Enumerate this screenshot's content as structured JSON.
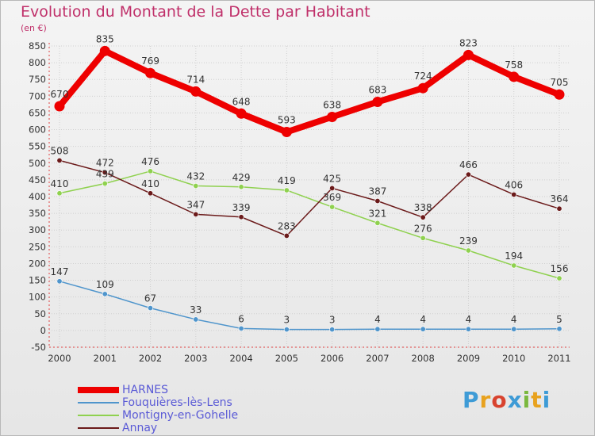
{
  "header": {
    "title": "Evolution du Montant de la Dette par Habitant",
    "unit": "(en €)"
  },
  "logo": {
    "text": "Proxiti",
    "colors": [
      "#3e9bd6",
      "#e8a21e",
      "#d8432f",
      "#3e9bd6",
      "#7ab83e",
      "#e8a21e",
      "#3e9bd6"
    ]
  },
  "chart_data": {
    "type": "line",
    "x": [
      "2000",
      "2001",
      "2002",
      "2003",
      "2004",
      "2005",
      "2006",
      "2007",
      "2008",
      "2009",
      "2010",
      "2011"
    ],
    "ylim": [
      -50,
      850
    ],
    "yticks": [
      -50,
      0,
      50,
      100,
      150,
      200,
      250,
      300,
      350,
      400,
      450,
      500,
      550,
      600,
      650,
      700,
      750,
      800,
      850
    ],
    "grid": true,
    "series": [
      {
        "name": "HARNES",
        "color": "#ee0000",
        "values": [
          670,
          835,
          769,
          714,
          648,
          593,
          638,
          683,
          724,
          823,
          758,
          705
        ]
      },
      {
        "name": "Fouquières-lès-Lens",
        "color": "#4f95cc",
        "values": [
          147,
          109,
          67,
          33,
          6,
          3,
          3,
          4,
          4,
          4,
          4,
          5
        ]
      },
      {
        "name": "Montigny-en-Gohelle",
        "color": "#8fd14f",
        "values": [
          410,
          439,
          476,
          432,
          429,
          419,
          369,
          321,
          276,
          239,
          194,
          156
        ]
      },
      {
        "name": "Annay",
        "color": "#6b1a1a",
        "values": [
          508,
          472,
          410,
          347,
          339,
          283,
          425,
          387,
          338,
          466,
          406,
          364
        ]
      }
    ]
  }
}
